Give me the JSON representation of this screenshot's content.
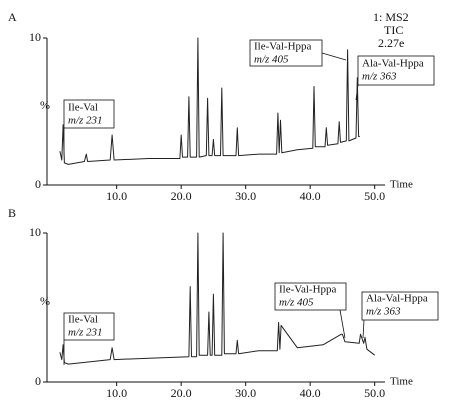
{
  "chart_data": [
    {
      "type": "line",
      "label": "A",
      "info": [
        "1: MS2",
        "TIC",
        "2.27e"
      ],
      "xlabel": "Time",
      "ylabel": "%",
      "xlim": [
        -0.8,
        51.6
      ],
      "ylim": [
        0,
        10
      ],
      "xticks": [
        {
          "value": 10,
          "label": "10.0"
        },
        {
          "value": 20,
          "label": "20.0"
        },
        {
          "value": 30,
          "label": "30.0"
        },
        {
          "value": 40,
          "label": "40.0"
        },
        {
          "value": 50,
          "label": "50.0"
        }
      ],
      "yticks": [
        0,
        10
      ],
      "grid": false,
      "color": "#222",
      "annotations": [
        [
          "Ile-Val",
          "m/z 231"
        ],
        [
          "Ile-Val-Hppa",
          "m/z 405"
        ],
        [
          "Ala-Val-Hppa",
          "m/z 363"
        ]
      ],
      "x": [
        1.2,
        1.5,
        1.7,
        1.9,
        2.5,
        5,
        5.3,
        5.5,
        9,
        9.3,
        9.6,
        15,
        19.8,
        20,
        20.2,
        21,
        21.2,
        21.4,
        22.4,
        22.6,
        22.8,
        23.9,
        24.1,
        24.3,
        24.8,
        25,
        25.2,
        26.1,
        26.3,
        26.5,
        28.5,
        28.7,
        28.9,
        32,
        34.8,
        35,
        35.2,
        35.4,
        35.6,
        38,
        40.4,
        40.6,
        40.8,
        42.3,
        42.5,
        42.7,
        44.3,
        44.5,
        44.7,
        45.6,
        45.8,
        46,
        47.1,
        47.3,
        47.5,
        47.7
      ],
      "values": [
        2.3,
        1.7,
        4.1,
        1.5,
        1.4,
        1.6,
        2.1,
        1.6,
        1.7,
        3.4,
        1.7,
        1.8,
        1.8,
        3.4,
        1.9,
        1.9,
        6.0,
        1.9,
        1.9,
        10,
        1.9,
        2.0,
        5.9,
        2.0,
        2.0,
        3.1,
        2.0,
        2.0,
        6.6,
        2.0,
        2.0,
        3.9,
        2.0,
        2.1,
        2.1,
        4.9,
        2.2,
        4.4,
        2.2,
        2.4,
        2.5,
        6.7,
        2.6,
        2.6,
        3.9,
        2.7,
        2.8,
        4.3,
        2.9,
        3,
        9.2,
        3.0,
        3.2,
        7.3,
        3.3,
        3.3
      ]
    },
    {
      "type": "line",
      "label": "B",
      "xlabel": "Time",
      "ylabel": "%",
      "xlim": [
        -0.8,
        51.6
      ],
      "ylim": [
        0,
        10
      ],
      "xticks": [
        {
          "value": 10,
          "label": "10.0"
        },
        {
          "value": 20,
          "label": "20.0"
        },
        {
          "value": 30,
          "label": "30.0"
        },
        {
          "value": 40,
          "label": "40.0"
        },
        {
          "value": 50,
          "label": "50.0"
        }
      ],
      "yticks": [
        0,
        10
      ],
      "grid": false,
      "color": "#222",
      "annotations": [
        [
          "Ile-Val",
          "m/z 231"
        ],
        [
          "Ile-Val-Hppa",
          "m/z 405"
        ],
        [
          "Ala-Val-Hppa",
          "m/z 363"
        ]
      ],
      "x": [
        1.2,
        1.5,
        1.7,
        1.9,
        2.5,
        9,
        9.3,
        9.6,
        15,
        21.2,
        21.4,
        21.6,
        22.4,
        22.6,
        22.8,
        24.1,
        24.3,
        24.5,
        24.8,
        25,
        25.2,
        26.3,
        26.5,
        26.7,
        28.5,
        28.7,
        28.9,
        32,
        34.9,
        35.1,
        35.3,
        35.5,
        38,
        42,
        44.8,
        45,
        45.4,
        47.6,
        47.8,
        48.3,
        48.5,
        48.8,
        50
      ],
      "values": [
        2.0,
        1.5,
        2.5,
        1.3,
        1.2,
        1.5,
        2.3,
        1.5,
        1.6,
        1.7,
        6.4,
        1.7,
        1.7,
        10,
        1.8,
        1.8,
        4.7,
        1.8,
        1.8,
        5.9,
        1.8,
        1.8,
        10,
        1.9,
        1.9,
        2.8,
        1.9,
        2.1,
        2.1,
        4.0,
        2.2,
        3.8,
        2.3,
        2.5,
        3.2,
        3.2,
        2.7,
        2.6,
        3.2,
        2.6,
        3.0,
        2.2,
        1.8
      ]
    }
  ]
}
